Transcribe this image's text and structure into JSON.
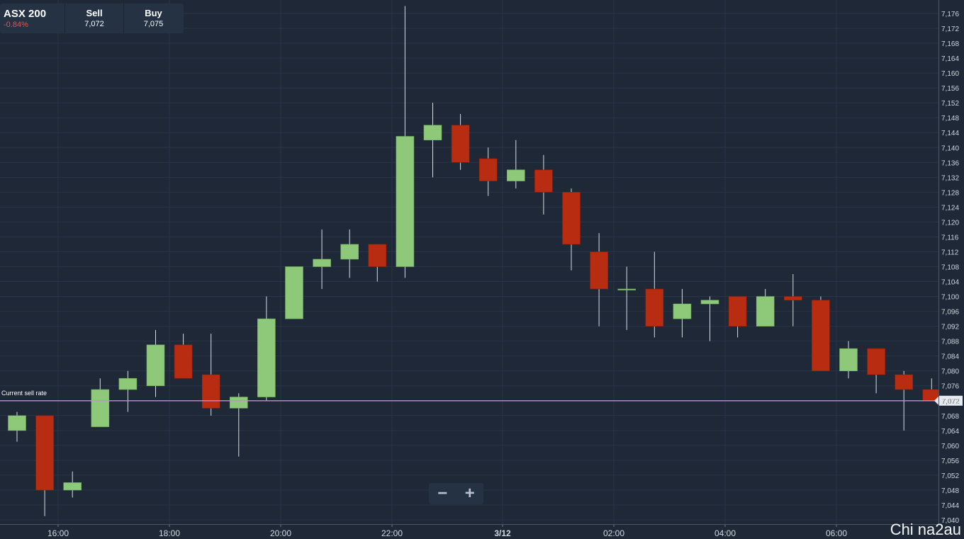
{
  "header": {
    "instrument": "ASX 200",
    "change": "-0.84%",
    "sell_label": "Sell",
    "sell_value": "7,072",
    "buy_label": "Buy",
    "buy_value": "7,075"
  },
  "chart_data": {
    "type": "candlestick",
    "ylim": [
      7040,
      7178
    ],
    "y_ticks": [
      "7,176",
      "7,172",
      "7,168",
      "7,164",
      "7,160",
      "7,156",
      "7,152",
      "7,148",
      "7,144",
      "7,140",
      "7,136",
      "7,132",
      "7,128",
      "7,124",
      "7,120",
      "7,116",
      "7,112",
      "7,108",
      "7,104",
      "7,100",
      "7,096",
      "7,092",
      "7,088",
      "7,084",
      "7,080",
      "7,076",
      "7,072",
      "7,068",
      "7,064",
      "7,060",
      "7,056",
      "7,052",
      "7,048",
      "7,044",
      "7,040"
    ],
    "x_ticks": [
      "16:00",
      "18:00",
      "20:00",
      "22:00",
      "3/12",
      "02:00",
      "04:00",
      "06:00"
    ],
    "current_sell_rate": 7072,
    "current_sell_rate_label": "Current sell rate",
    "current_sell_rate_text": "7,072",
    "colors": {
      "up": "#8ec97a",
      "down": "#b82c12",
      "rate_line": "#c68ad9",
      "grid": "#28344a",
      "axis_text": "#d0d6de"
    },
    "candles": [
      {
        "time": "15:30",
        "open": 7064,
        "high": 7069,
        "low": 7061,
        "close": 7068
      },
      {
        "time": "16:00",
        "open": 7068,
        "high": 7068,
        "low": 7041,
        "close": 7048
      },
      {
        "time": "16:30",
        "open": 7048,
        "high": 7053,
        "low": 7046,
        "close": 7050
      },
      {
        "time": "17:00",
        "open": 7065,
        "high": 7078,
        "low": 7065,
        "close": 7075
      },
      {
        "time": "17:30",
        "open": 7075,
        "high": 7080,
        "low": 7069,
        "close": 7078
      },
      {
        "time": "18:00",
        "open": 7076,
        "high": 7091,
        "low": 7073,
        "close": 7087
      },
      {
        "time": "18:30",
        "open": 7087,
        "high": 7090,
        "low": 7078,
        "close": 7078
      },
      {
        "time": "19:00",
        "open": 7079,
        "high": 7090,
        "low": 7068,
        "close": 7070
      },
      {
        "time": "19:30",
        "open": 7070,
        "high": 7074,
        "low": 7057,
        "close": 7073
      },
      {
        "time": "20:00",
        "open": 7073,
        "high": 7100,
        "low": 7072,
        "close": 7094
      },
      {
        "time": "20:30",
        "open": 7094,
        "high": 7108,
        "low": 7094,
        "close": 7108
      },
      {
        "time": "21:00",
        "open": 7108,
        "high": 7118,
        "low": 7102,
        "close": 7110
      },
      {
        "time": "21:30",
        "open": 7110,
        "high": 7118,
        "low": 7105,
        "close": 7114
      },
      {
        "time": "22:00",
        "open": 7114,
        "high": 7114,
        "low": 7104,
        "close": 7108
      },
      {
        "time": "22:30",
        "open": 7108,
        "high": 7178,
        "low": 7105,
        "close": 7143
      },
      {
        "time": "23:00",
        "open": 7142,
        "high": 7152,
        "low": 7132,
        "close": 7146
      },
      {
        "time": "23:30",
        "open": 7146,
        "high": 7149,
        "low": 7134,
        "close": 7136
      },
      {
        "time": "00:00",
        "open": 7137,
        "high": 7140,
        "low": 7127,
        "close": 7131
      },
      {
        "time": "00:30",
        "open": 7131,
        "high": 7142,
        "low": 7129,
        "close": 7134
      },
      {
        "time": "01:00",
        "open": 7134,
        "high": 7138,
        "low": 7122,
        "close": 7128
      },
      {
        "time": "01:30",
        "open": 7128,
        "high": 7129,
        "low": 7107,
        "close": 7114
      },
      {
        "time": "02:00",
        "open": 7112,
        "high": 7117,
        "low": 7092,
        "close": 7102
      },
      {
        "time": "02:30",
        "open": 7102,
        "high": 7108,
        "low": 7091,
        "close": 7102
      },
      {
        "time": "03:00",
        "open": 7102,
        "high": 7112,
        "low": 7089,
        "close": 7092
      },
      {
        "time": "03:30",
        "open": 7094,
        "high": 7102,
        "low": 7089,
        "close": 7098
      },
      {
        "time": "04:00",
        "open": 7098,
        "high": 7100,
        "low": 7088,
        "close": 7099
      },
      {
        "time": "04:30",
        "open": 7100,
        "high": 7100,
        "low": 7089,
        "close": 7092
      },
      {
        "time": "05:00",
        "open": 7092,
        "high": 7102,
        "low": 7092,
        "close": 7100
      },
      {
        "time": "05:30",
        "open": 7100,
        "high": 7106,
        "low": 7092,
        "close": 7099
      },
      {
        "time": "06:00",
        "open": 7099,
        "high": 7100,
        "low": 7080,
        "close": 7080
      },
      {
        "time": "06:30",
        "open": 7080,
        "high": 7088,
        "low": 7078,
        "close": 7086
      },
      {
        "time": "07:00",
        "open": 7086,
        "high": 7086,
        "low": 7074,
        "close": 7079
      },
      {
        "time": "07:30",
        "open": 7079,
        "high": 7080,
        "low": 7064,
        "close": 7075
      },
      {
        "time": "08:00",
        "open": 7075,
        "high": 7078,
        "low": 7072,
        "close": 7072
      }
    ]
  },
  "zoom": {
    "minus": "−",
    "plus": "+"
  },
  "watermark": "Chi na2au"
}
